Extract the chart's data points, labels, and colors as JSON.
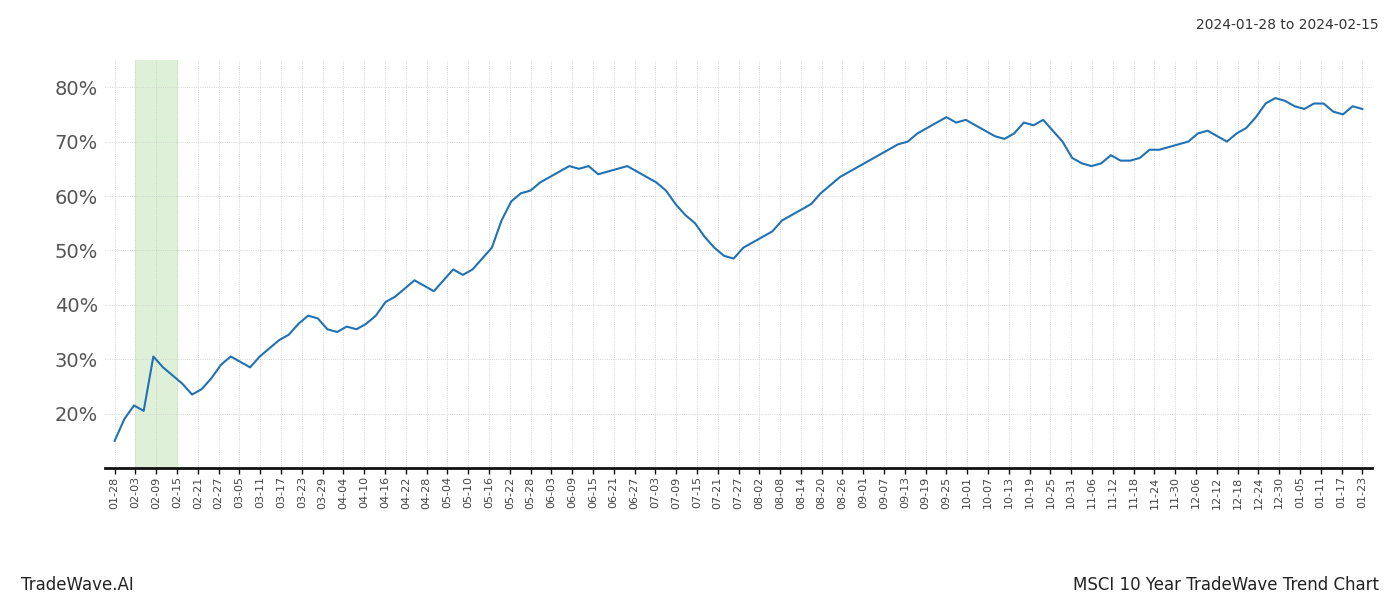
{
  "title_top_right": "2024-01-28 to 2024-02-15",
  "title_bottom_right": "MSCI 10 Year TradeWave Trend Chart",
  "title_bottom_left": "TradeWave.AI",
  "line_color": "#2171b5",
  "line_width": 1.5,
  "background_color": "#ffffff",
  "grid_color": "#c8c8c8",
  "highlight_color": "#dff0d8",
  "ylim": [
    10,
    85
  ],
  "yticks": [
    20,
    30,
    40,
    50,
    60,
    70,
    80
  ],
  "ytick_labels": [
    "20%",
    "30%",
    "40%",
    "50%",
    "60%",
    "70%",
    "80%"
  ],
  "x_labels": [
    "01-28",
    "02-03",
    "02-09",
    "02-15",
    "02-21",
    "02-27",
    "03-05",
    "03-11",
    "03-17",
    "03-23",
    "03-29",
    "04-04",
    "04-10",
    "04-16",
    "04-22",
    "04-28",
    "05-04",
    "05-10",
    "05-16",
    "05-22",
    "05-28",
    "06-03",
    "06-09",
    "06-15",
    "06-21",
    "06-27",
    "07-03",
    "07-09",
    "07-15",
    "07-21",
    "07-27",
    "08-02",
    "08-08",
    "08-14",
    "08-20",
    "08-26",
    "09-01",
    "09-07",
    "09-13",
    "09-19",
    "09-25",
    "10-01",
    "10-07",
    "10-13",
    "10-19",
    "10-25",
    "10-31",
    "11-06",
    "11-12",
    "11-18",
    "11-24",
    "11-30",
    "12-06",
    "12-12",
    "12-18",
    "12-24",
    "12-30",
    "01-05",
    "01-11",
    "01-17",
    "01-23"
  ],
  "y_values": [
    15.0,
    19.0,
    21.5,
    20.5,
    30.5,
    28.5,
    27.0,
    25.5,
    23.5,
    24.5,
    26.5,
    29.0,
    30.5,
    29.5,
    28.5,
    30.5,
    32.0,
    33.5,
    34.5,
    36.5,
    38.0,
    37.5,
    35.5,
    35.0,
    36.0,
    35.5,
    36.5,
    38.0,
    40.5,
    41.5,
    43.0,
    44.5,
    43.5,
    42.5,
    44.5,
    46.5,
    45.5,
    46.5,
    48.5,
    50.5,
    55.5,
    59.0,
    60.5,
    61.0,
    62.5,
    63.5,
    64.5,
    65.5,
    65.0,
    65.5,
    64.0,
    64.5,
    65.0,
    65.5,
    64.5,
    63.5,
    62.5,
    61.0,
    58.5,
    56.5,
    55.0,
    52.5,
    50.5,
    49.0,
    48.5,
    50.5,
    51.5,
    52.5,
    53.5,
    55.5,
    56.5,
    57.5,
    58.5,
    60.5,
    62.0,
    63.5,
    64.5,
    65.5,
    66.5,
    67.5,
    68.5,
    69.5,
    70.0,
    71.5,
    72.5,
    73.5,
    74.5,
    73.5,
    74.0,
    73.0,
    72.0,
    71.0,
    70.5,
    71.5,
    73.5,
    73.0,
    74.0,
    72.0,
    70.0,
    67.0,
    66.0,
    65.5,
    66.0,
    67.5,
    66.5,
    66.5,
    67.0,
    68.5,
    68.5,
    69.0,
    69.5,
    70.0,
    71.5,
    72.0,
    71.0,
    70.0,
    71.5,
    72.5,
    74.5,
    77.0,
    78.0,
    77.5,
    76.5,
    76.0,
    77.0,
    77.0,
    75.5,
    75.0,
    76.5,
    76.0
  ],
  "highlight_xstart_label": "02-03",
  "highlight_xend_label": "02-15",
  "ytick_fontsize": 14,
  "xtick_fontsize": 8
}
